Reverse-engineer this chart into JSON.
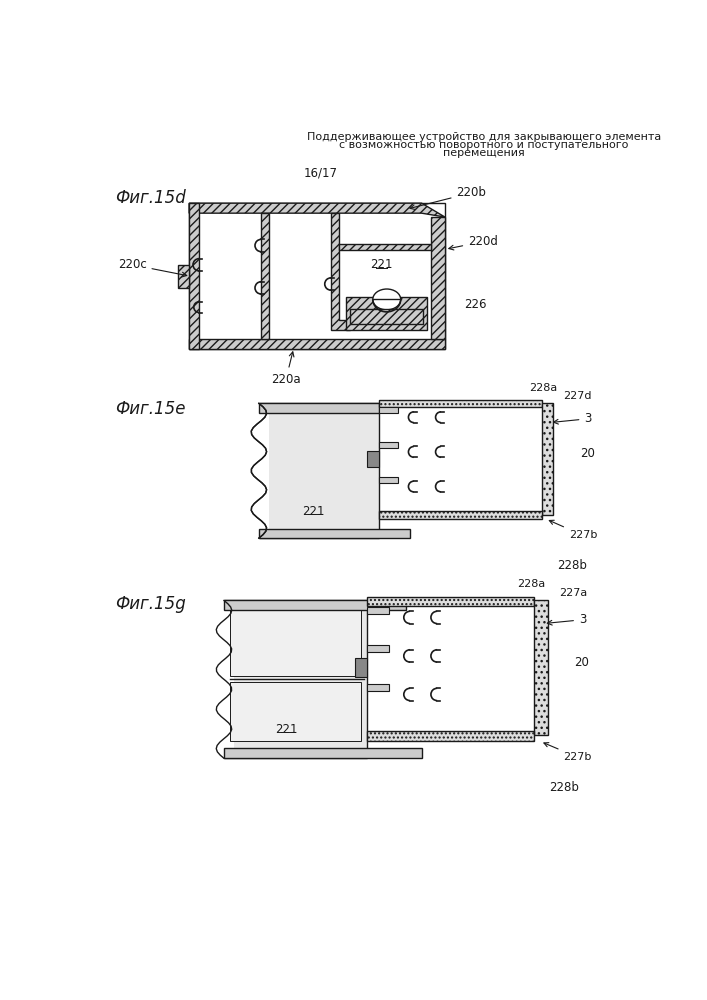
{
  "title_line1": "Поддерживающее устройство для закрывающего элемента",
  "title_line2": "с возможностью поворотного и поступательного",
  "title_line3": "перемещения",
  "page_number": "16/17",
  "fig15d_label": "Фиг.15d",
  "fig15e_label": "Фиг.15e",
  "fig15g_label": "Фиг.15g",
  "bg_color": "#ffffff",
  "dc": "#1a1a1a"
}
